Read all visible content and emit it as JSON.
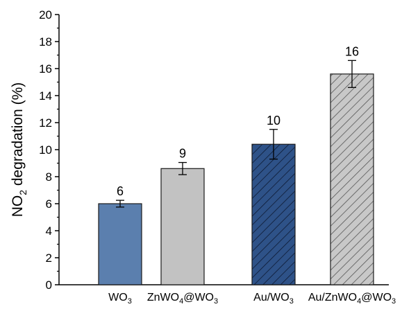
{
  "chart_data": {
    "type": "bar",
    "ylabel": "NO2 degradation (%)",
    "ylabel_parts": {
      "main": "NO",
      "sub": "2",
      "rest": " degradation (%)"
    },
    "ylim": [
      0,
      20
    ],
    "yticks": [
      0,
      2,
      4,
      6,
      8,
      10,
      12,
      14,
      16,
      18,
      20
    ],
    "grid": false,
    "categories": [
      "WO3",
      "ZnWO4@WO3",
      "Au/WO3",
      "Au/ZnWO4@WO3"
    ],
    "category_labels": [
      [
        {
          "t": "WO"
        },
        {
          "t": "3",
          "sub": true
        }
      ],
      [
        {
          "t": "ZnWO"
        },
        {
          "t": "4",
          "sub": true
        },
        {
          "t": "@WO"
        },
        {
          "t": "3",
          "sub": true
        }
      ],
      [
        {
          "t": "Au/WO"
        },
        {
          "t": "3",
          "sub": true
        }
      ],
      [
        {
          "t": "Au/ZnWO"
        },
        {
          "t": "4",
          "sub": true
        },
        {
          "t": "@WO"
        },
        {
          "t": "3",
          "sub": true
        }
      ]
    ],
    "values": [
      6.0,
      8.6,
      10.4,
      15.6
    ],
    "errors": [
      0.25,
      0.45,
      1.1,
      1.0
    ],
    "data_labels": [
      "6",
      "9",
      "10",
      "16"
    ],
    "colors": [
      "#5b7fae",
      "#c2c2c2",
      "#2e5288",
      "#c8c8c8"
    ],
    "hatched": [
      false,
      false,
      true,
      true
    ]
  }
}
